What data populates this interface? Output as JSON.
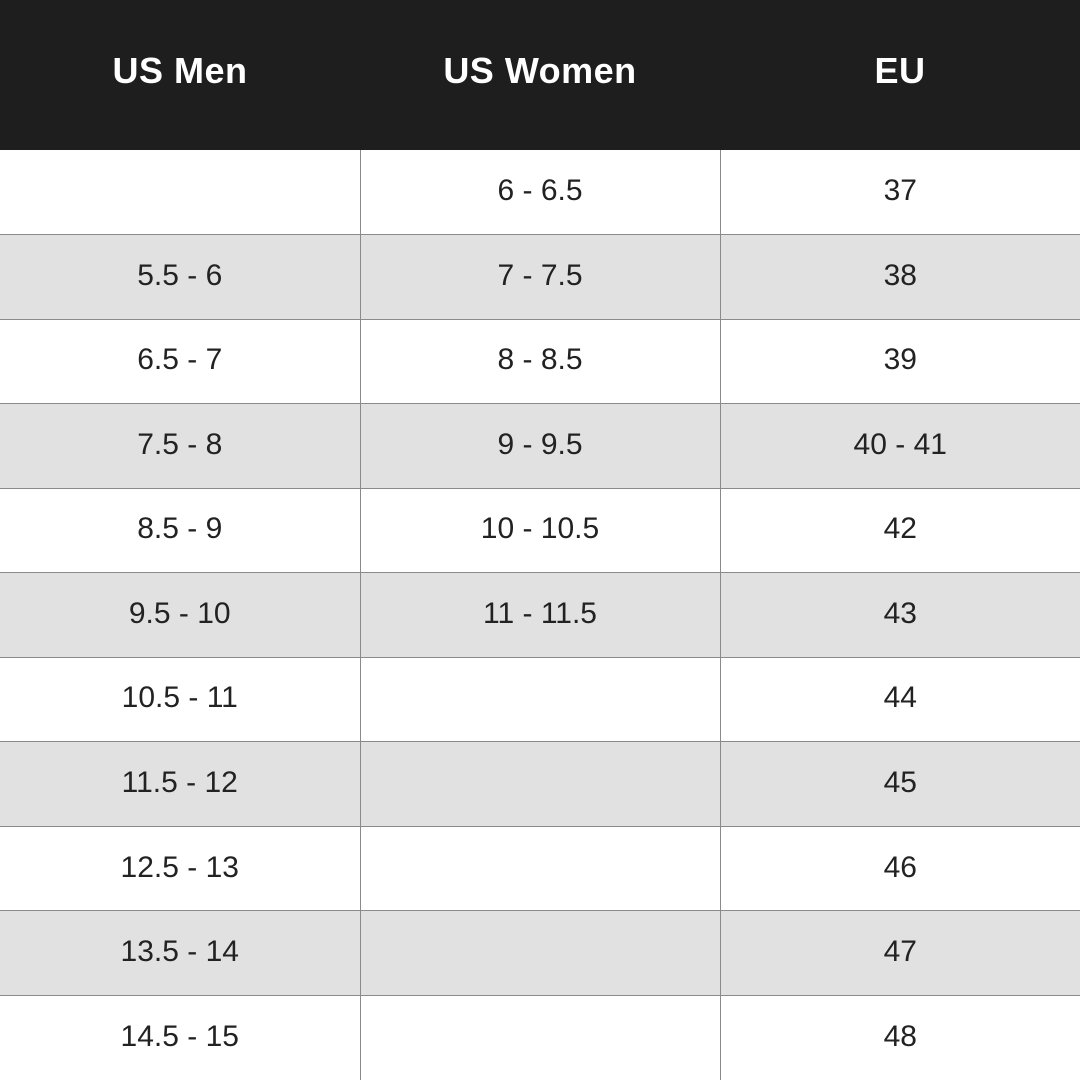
{
  "table": {
    "headers": {
      "us_men": "US Men",
      "us_women": "US Women",
      "eu": "EU"
    },
    "rows": [
      {
        "us_men": "",
        "us_women": "6 - 6.5",
        "eu": "37"
      },
      {
        "us_men": "5.5 - 6",
        "us_women": "7 - 7.5",
        "eu": "38"
      },
      {
        "us_men": "6.5 - 7",
        "us_women": "8 - 8.5",
        "eu": "39"
      },
      {
        "us_men": "7.5 - 8",
        "us_women": "9 - 9.5",
        "eu": "40 - 41"
      },
      {
        "us_men": "8.5 - 9",
        "us_women": "10 - 10.5",
        "eu": "42"
      },
      {
        "us_men": "9.5 - 10",
        "us_women": "11 - 11.5",
        "eu": "43"
      },
      {
        "us_men": "10.5 - 11",
        "us_women": "",
        "eu": "44"
      },
      {
        "us_men": "11.5 - 12",
        "us_women": "",
        "eu": "45"
      },
      {
        "us_men": "12.5 - 13",
        "us_women": "",
        "eu": "46"
      },
      {
        "us_men": "13.5 - 14",
        "us_women": "",
        "eu": "47"
      },
      {
        "us_men": "14.5 - 15",
        "us_women": "",
        "eu": "48"
      }
    ]
  },
  "colors": {
    "header_background": "#1e1e1e",
    "header_text": "#ffffff",
    "row_shaded": "#e1e1e1",
    "row_plain": "#ffffff",
    "cell_text": "#222222",
    "grid_line": "#8a8a8a"
  }
}
